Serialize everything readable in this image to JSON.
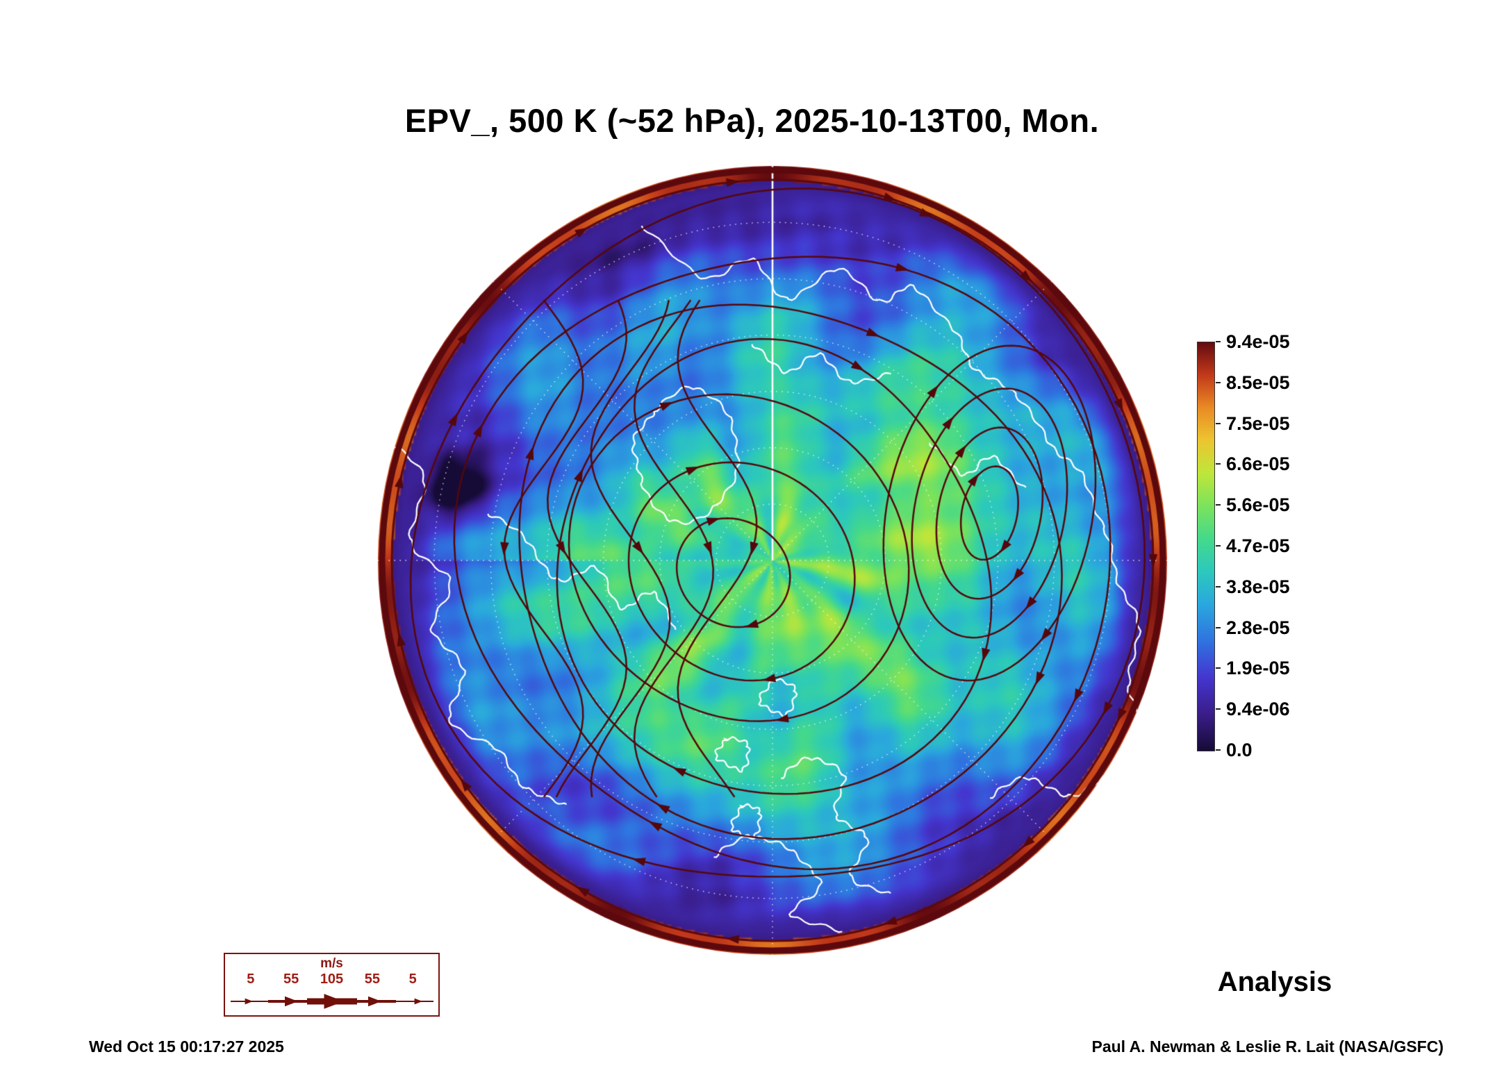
{
  "title": "EPV_, 500 K (~52 hPa), 2025-10-13T00, Mon.",
  "analysis_label": "Analysis",
  "footer": {
    "generated_timestamp": "Wed Oct 15 00:17:27 2025",
    "credit": "Paul A. Newman & Leslie R. Lait (NASA/GSFC)"
  },
  "wind_legend": {
    "units_label": "m/s",
    "tick_values": [
      "5",
      "55",
      "105",
      "55",
      "5"
    ]
  },
  "chart_data": {
    "type": "heatmap",
    "title": "EPV_, 500 K (~52 hPa), 2025-10-13T00, Mon.",
    "field": "EPV_ (Ertel potential vorticity)",
    "level_label": "500 K (~52 hPa)",
    "valid_time": "2025-10-13T00, Mon.",
    "data_source_label": "Analysis",
    "projection": "north polar stereographic",
    "overlays": [
      "filled EPV field",
      "wind streamlines with arrows",
      "coastlines",
      "dotted latitude/longitude graticule",
      "solid meridian line at top"
    ],
    "colorbar": {
      "orientation": "vertical",
      "min": 0,
      "max": 9.4e-05,
      "tick_labels": [
        "9.4e-05",
        "8.5e-05",
        "7.5e-05",
        "6.6e-05",
        "5.6e-05",
        "4.7e-05",
        "3.8e-05",
        "2.8e-05",
        "1.9e-05",
        "9.4e-06",
        "0.0"
      ],
      "gradient_stops": [
        {
          "pos": 0.0,
          "color": "#160b36"
        },
        {
          "pos": 0.09,
          "color": "#3a1d8a"
        },
        {
          "pos": 0.18,
          "color": "#4436cf"
        },
        {
          "pos": 0.27,
          "color": "#2f74e0"
        },
        {
          "pos": 0.36,
          "color": "#2aa8dd"
        },
        {
          "pos": 0.44,
          "color": "#2cc9bc"
        },
        {
          "pos": 0.52,
          "color": "#45d98b"
        },
        {
          "pos": 0.6,
          "color": "#7ce35b"
        },
        {
          "pos": 0.68,
          "color": "#bfe63a"
        },
        {
          "pos": 0.76,
          "color": "#ecc530"
        },
        {
          "pos": 0.84,
          "color": "#e98a24"
        },
        {
          "pos": 0.92,
          "color": "#c2391a"
        },
        {
          "pos": 1.0,
          "color": "#640a10"
        }
      ]
    },
    "wind_legend": {
      "units": "m/s",
      "speeds": [
        5,
        55,
        105,
        55,
        5
      ]
    },
    "overlay_colors": {
      "streamlines": "#55070b",
      "coastlines": "#ffffff",
      "graticule": "#ffffff",
      "edge_ring": "#5c090d"
    }
  }
}
